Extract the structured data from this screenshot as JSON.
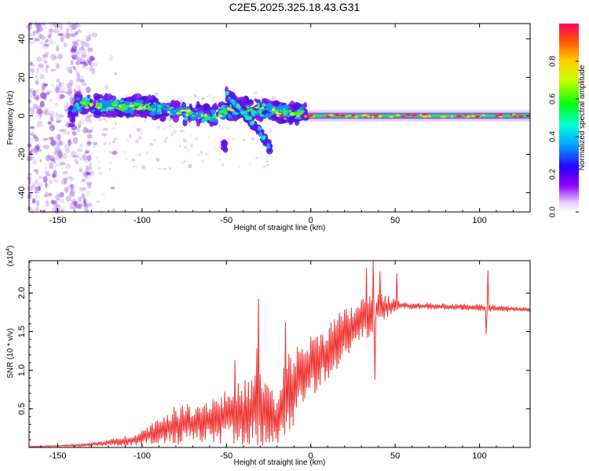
{
  "title": "C2E5.2025.325.18.43.G31",
  "chart_data": [
    {
      "type": "heatmap",
      "panel": "spectrogram",
      "xlabel": "Height of straight line (km)",
      "ylabel": "Frequency (Hz)",
      "xlim": [
        -167,
        130
      ],
      "ylim": [
        -50,
        48
      ],
      "xticks": [
        -150,
        -100,
        -50,
        0,
        50,
        100
      ],
      "xtick_labels": [
        "-150",
        "-100",
        "-50",
        "0",
        "50",
        "100"
      ],
      "yticks": [
        -40,
        -20,
        0,
        20,
        40
      ],
      "ytick_labels": [
        "-40",
        "-20",
        "0",
        "20",
        "40"
      ],
      "colorbar": {
        "label": "Normalized spectral amplitude",
        "range": [
          0,
          1
        ],
        "ticks": [
          0.0,
          0.2,
          0.4,
          0.6,
          0.8
        ],
        "tick_labels": [
          "0.0",
          "0.2",
          "0.4",
          "0.6",
          "0.8"
        ],
        "colormap": "rainbow (violet to red)"
      },
      "features": {
        "noisy_region_x": [
          -167,
          -130
        ],
        "main_track": [
          {
            "x": -140,
            "f": 6
          },
          {
            "x": -120,
            "f": 5
          },
          {
            "x": -100,
            "f": 5
          },
          {
            "x": -80,
            "f": 2
          },
          {
            "x": -60,
            "f": 0
          },
          {
            "x": -40,
            "f": 4
          },
          {
            "x": -20,
            "f": 2
          },
          {
            "x": 0,
            "f": 1
          },
          {
            "x": 50,
            "f": 0
          },
          {
            "x": 130,
            "f": 0
          }
        ],
        "diagonal_branch": [
          {
            "x": -50,
            "f": 12
          },
          {
            "x": -40,
            "f": 2
          },
          {
            "x": -30,
            "f": -8
          },
          {
            "x": -25,
            "f": -16
          }
        ]
      }
    },
    {
      "type": "line",
      "panel": "snr",
      "xlabel": "Height of straight line (km)",
      "ylabel": "SNR (10 * v/v)",
      "scale_note": "(x10^4)",
      "scale_base": "(x10",
      "scale_exp": "4",
      "scale_close": ")",
      "color": "#f03030",
      "xlim": [
        -167,
        130
      ],
      "ylim": [
        0,
        2.42
      ],
      "xticks": [
        -150,
        -100,
        -50,
        0,
        50,
        100
      ],
      "xtick_labels": [
        "-150",
        "-100",
        "-50",
        "0",
        "50",
        "100"
      ],
      "yticks": [
        0.5,
        1.0,
        1.5,
        2.0
      ],
      "ytick_labels": [
        "0.5",
        "1.0",
        "1.5",
        "2.0"
      ],
      "series": [
        {
          "name": "SNR",
          "x": [
            -167,
            -150,
            -135,
            -125,
            -115,
            -105,
            -100,
            -95,
            -90,
            -85,
            -80,
            -75,
            -70,
            -65,
            -60,
            -55,
            -50,
            -45,
            -40,
            -35,
            -30,
            -25,
            -20,
            -15,
            -10,
            -5,
            0,
            5,
            10,
            15,
            20,
            25,
            30,
            35,
            40,
            45,
            50,
            55,
            60,
            70,
            80,
            90,
            100,
            105,
            110,
            120,
            130
          ],
          "mean": [
            0.01,
            0.02,
            0.03,
            0.05,
            0.07,
            0.1,
            0.13,
            0.17,
            0.22,
            0.26,
            0.28,
            0.3,
            0.32,
            0.33,
            0.36,
            0.38,
            0.4,
            0.43,
            0.45,
            0.48,
            0.5,
            0.45,
            0.3,
            0.65,
            0.8,
            0.95,
            1.05,
            1.15,
            1.25,
            1.35,
            1.45,
            1.55,
            1.65,
            1.7,
            1.8,
            1.82,
            1.85,
            1.84,
            1.83,
            1.83,
            1.82,
            1.82,
            1.81,
            1.8,
            1.8,
            1.79,
            1.79
          ],
          "spread": [
            0.005,
            0.01,
            0.02,
            0.03,
            0.05,
            0.08,
            0.1,
            0.14,
            0.18,
            0.22,
            0.25,
            0.26,
            0.26,
            0.28,
            0.3,
            0.33,
            0.36,
            0.38,
            0.42,
            0.45,
            0.5,
            0.45,
            0.3,
            0.55,
            0.5,
            0.45,
            0.4,
            0.4,
            0.38,
            0.36,
            0.35,
            0.32,
            0.3,
            0.28,
            0.2,
            0.14,
            0.08,
            0.05,
            0.04,
            0.04,
            0.04,
            0.04,
            0.04,
            0.05,
            0.04,
            0.03,
            0.03
          ],
          "spikes": [
            {
              "x": 37,
              "y": 2.42
            },
            {
              "x": 33,
              "y": 2.32
            },
            {
              "x": 41,
              "y": 2.28
            },
            {
              "x": 51,
              "y": 2.25
            },
            {
              "x": 38,
              "y": 0.88
            },
            {
              "x": 105,
              "y": 2.29
            },
            {
              "x": 104,
              "y": 1.47
            },
            {
              "x": -31,
              "y": 1.92
            },
            {
              "x": -15,
              "y": 1.62
            },
            {
              "x": -32,
              "y": 1.28
            },
            {
              "x": -45,
              "y": 1.13
            }
          ]
        }
      ]
    }
  ]
}
